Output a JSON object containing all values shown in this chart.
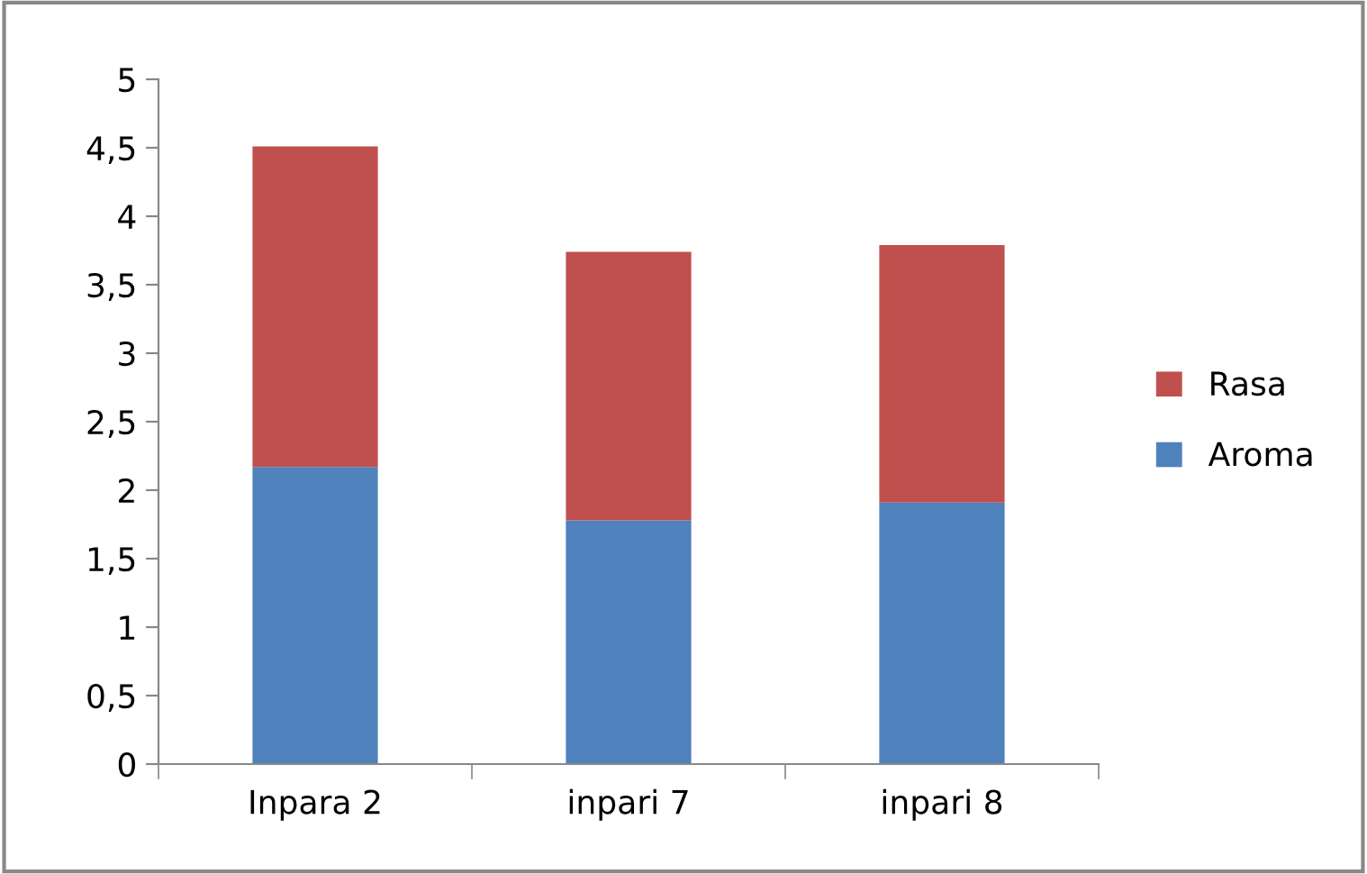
{
  "chart_data": {
    "type": "bar",
    "stacked": true,
    "categories": [
      "Inpara 2",
      "inpari 7",
      "inpari 8"
    ],
    "series": [
      {
        "name": "Aroma",
        "color": "#4f81bd",
        "values": [
          2.17,
          1.78,
          1.91
        ]
      },
      {
        "name": "Rasa",
        "color": "#c0504d",
        "values": [
          2.34,
          1.96,
          1.88
        ]
      }
    ],
    "ylim": [
      0,
      5
    ],
    "yticks": [
      0,
      {
        "value": 0.5,
        "label": "0,5"
      },
      1,
      {
        "value": 1.5,
        "label": "1,5"
      },
      2,
      {
        "value": 2.5,
        "label": "2,5"
      },
      3,
      {
        "value": 3.5,
        "label": "3,5"
      },
      4,
      {
        "value": 4.5,
        "label": "4,5"
      },
      5
    ],
    "grid": false,
    "legend": "right"
  }
}
